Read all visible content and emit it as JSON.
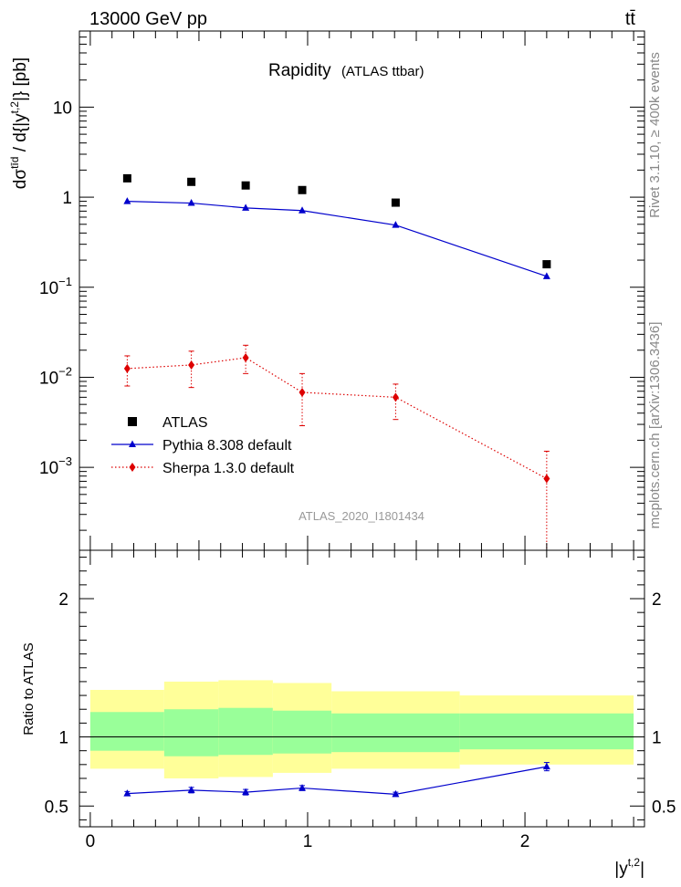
{
  "header": {
    "energy_label": "13000 GeV pp",
    "process_label": "tt̄"
  },
  "side_labels": {
    "rivet": "Rivet 3.1.10, ≥ 400k events",
    "mcplots": "mcplots.cern.ch [arXiv:1306.3436]"
  },
  "chart_data": {
    "type": "line",
    "title": "Rapidity",
    "subtitle": "(ATLAS ttbar)",
    "analysis_label": "ATLAS_2020_I1801434",
    "ylabel_main": "dσ^tīd / d{|y^t,2|} [pb]",
    "ylabel_ratio": "Ratio to ATLAS",
    "xlabel": "|y^t,2|",
    "xlim": [
      -0.05,
      2.55
    ],
    "ylim_main": [
      0.00012,
      70
    ],
    "yscale_main": "log",
    "ylim_ratio": [
      0.35,
      2.35
    ],
    "bin_edges": [
      0.0,
      0.34,
      0.59,
      0.84,
      1.11,
      1.7,
      2.5
    ],
    "x": [
      0.17,
      0.465,
      0.715,
      0.975,
      1.405,
      2.1
    ],
    "main_ticks": {
      "major": [
        0.001,
        0.01,
        0.1,
        1,
        10
      ],
      "major_labels": [
        "10^-3",
        "10^-2",
        "10^-1",
        "1",
        "10"
      ]
    },
    "ratio_ticks": {
      "values": [
        0.5,
        1,
        2
      ],
      "labels": [
        "0.5",
        "1",
        "2"
      ]
    },
    "x_ticks": {
      "values": [
        0,
        1,
        2
      ],
      "labels": [
        "0",
        "1",
        "2"
      ]
    },
    "series": [
      {
        "name": "ATLAS",
        "color": "#000000",
        "marker": "square",
        "values": [
          1.62,
          1.48,
          1.35,
          1.2,
          0.87,
          0.18
        ]
      },
      {
        "name": "Pythia 8.308 default",
        "color": "#0000cc",
        "marker": "triangle",
        "line": "solid",
        "values": [
          0.9,
          0.86,
          0.76,
          0.71,
          0.49,
          0.132
        ],
        "ratio": [
          0.59,
          0.615,
          0.6,
          0.63,
          0.585,
          0.785
        ],
        "ratio_err": [
          0.015,
          0.02,
          0.02,
          0.018,
          0.015,
          0.03
        ]
      },
      {
        "name": "Sherpa 1.3.0 default",
        "color": "#dd0000",
        "marker": "diamond",
        "line": "dotted",
        "values": [
          0.0125,
          0.0137,
          0.0165,
          0.0068,
          0.006,
          0.00075
        ],
        "err_low": [
          0.0045,
          0.006,
          0.0055,
          0.0039,
          0.0026,
          0.00063
        ],
        "err_high": [
          0.0048,
          0.0058,
          0.0062,
          0.0042,
          0.0024,
          0.00076
        ]
      }
    ],
    "ratio_bands": {
      "inner_color": "#99ff99",
      "outer_color": "#ffff99",
      "inner": [
        [
          0.9,
          1.18
        ],
        [
          0.86,
          1.2
        ],
        [
          0.87,
          1.21
        ],
        [
          0.88,
          1.19
        ],
        [
          0.89,
          1.17
        ],
        [
          0.91,
          1.17
        ]
      ],
      "outer": [
        [
          0.77,
          1.34
        ],
        [
          0.7,
          1.4
        ],
        [
          0.71,
          1.41
        ],
        [
          0.74,
          1.39
        ],
        [
          0.77,
          1.33
        ],
        [
          0.8,
          1.3
        ]
      ]
    },
    "legend_position": "lower-left"
  }
}
